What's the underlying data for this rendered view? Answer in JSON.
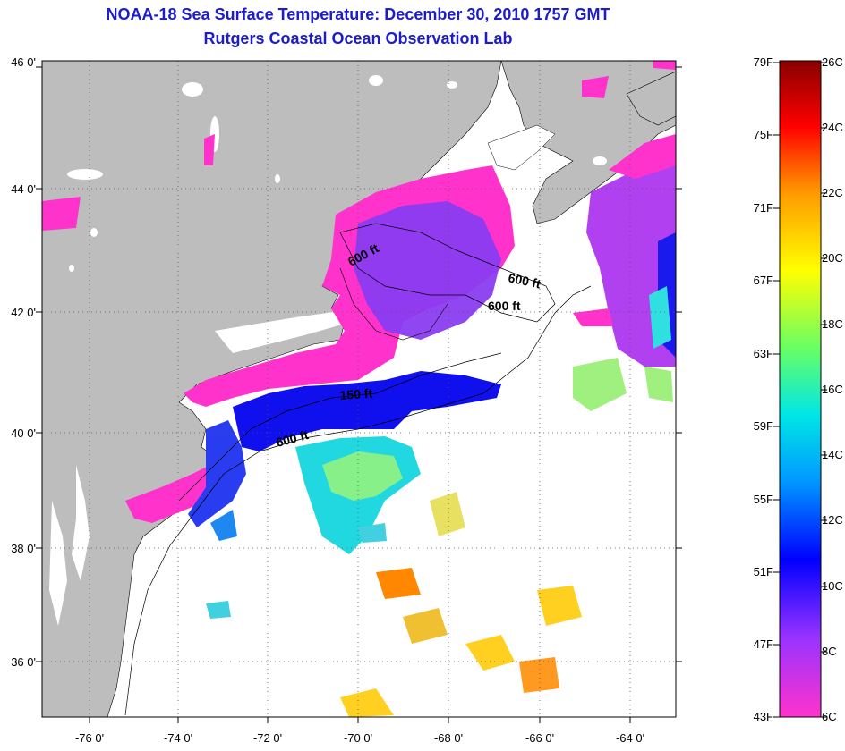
{
  "title": {
    "line1": "NOAA-18 Sea Surface Temperature:  December 30, 2010 1757 GMT",
    "line2": "Rutgers Coastal Ocean Observation Lab"
  },
  "latitude_labels": [
    "46 0'",
    "44 0'",
    "42 0'",
    "40 0'",
    "38 0'",
    "36 0'"
  ],
  "longitude_labels": [
    "-76 0'",
    "-74 0'",
    "-72 0'",
    "-70 0'",
    "-68 0'",
    "-66 0'",
    "-64 0'"
  ],
  "depth_contours": [
    "600 ft",
    "600 ft",
    "600 ft",
    "150 ft",
    "600 ft"
  ],
  "colorbar": {
    "fahrenheit": [
      "79F",
      "75F",
      "71F",
      "67F",
      "63F",
      "59F",
      "55F",
      "51F",
      "47F",
      "43F"
    ],
    "celsius": [
      "26C",
      "24C",
      "22C",
      "20C",
      "18C",
      "16C",
      "14C",
      "12C",
      "10C",
      "8C",
      "6C"
    ]
  },
  "colors": {
    "title": "#1c1ccc",
    "land": "#bdbdbd",
    "ocean": "#ffffff"
  }
}
